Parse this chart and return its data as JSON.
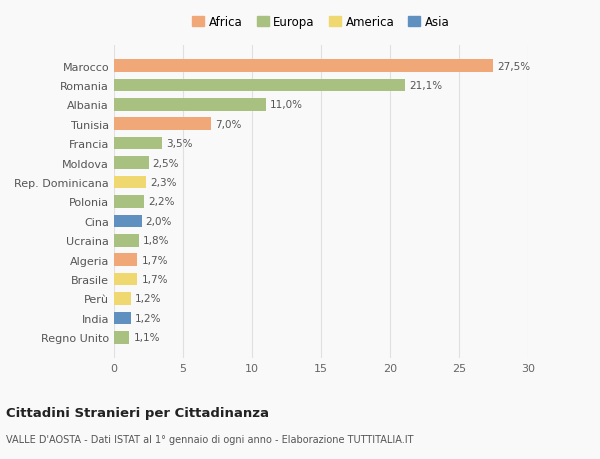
{
  "countries": [
    "Marocco",
    "Romania",
    "Albania",
    "Tunisia",
    "Francia",
    "Moldova",
    "Rep. Dominicana",
    "Polonia",
    "Cina",
    "Ucraina",
    "Algeria",
    "Brasile",
    "Perù",
    "India",
    "Regno Unito"
  ],
  "values": [
    27.5,
    21.1,
    11.0,
    7.0,
    3.5,
    2.5,
    2.3,
    2.2,
    2.0,
    1.8,
    1.7,
    1.7,
    1.2,
    1.2,
    1.1
  ],
  "labels": [
    "27,5%",
    "21,1%",
    "11,0%",
    "7,0%",
    "3,5%",
    "2,5%",
    "2,3%",
    "2,2%",
    "2,0%",
    "1,8%",
    "1,7%",
    "1,7%",
    "1,2%",
    "1,2%",
    "1,1%"
  ],
  "continents": [
    "Africa",
    "Europa",
    "Europa",
    "Africa",
    "Europa",
    "Europa",
    "America",
    "Europa",
    "Asia",
    "Europa",
    "Africa",
    "America",
    "America",
    "Asia",
    "Europa"
  ],
  "colors": {
    "Africa": "#F0A878",
    "Europa": "#A8C080",
    "America": "#F0D870",
    "Asia": "#6090C0"
  },
  "xlim": [
    0,
    30
  ],
  "xticks": [
    0,
    5,
    10,
    15,
    20,
    25,
    30
  ],
  "title": "Cittadini Stranieri per Cittadinanza",
  "subtitle": "VALLE D'AOSTA - Dati ISTAT al 1° gennaio di ogni anno - Elaborazione TUTTITALIA.IT",
  "background_color": "#f9f9f9",
  "grid_color": "#e0e0e0",
  "legend_order": [
    "Africa",
    "Europa",
    "America",
    "Asia"
  ]
}
